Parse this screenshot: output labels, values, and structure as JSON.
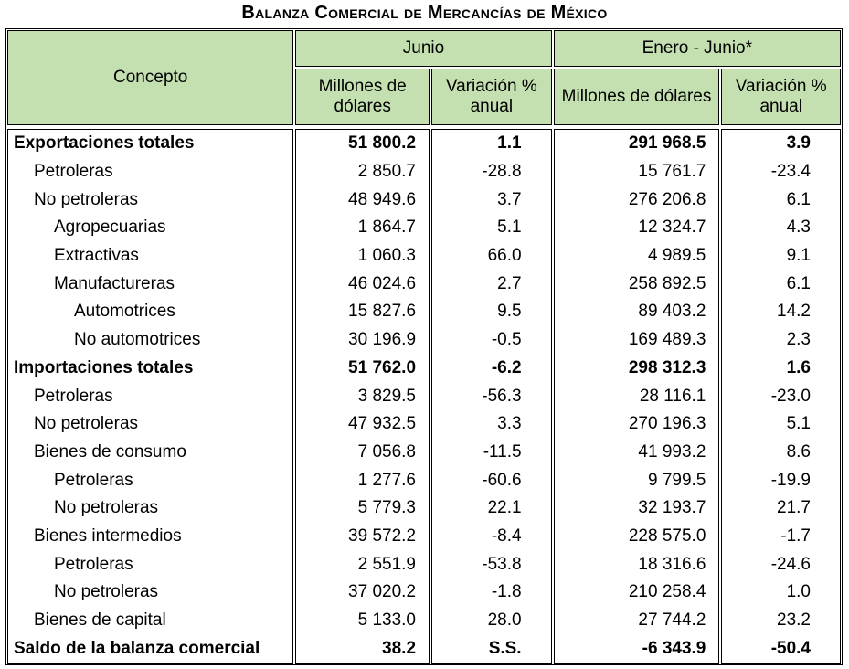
{
  "header": {
    "title": "Balanza Comercial de Mercancías de México"
  },
  "table": {
    "columns": {
      "concepto": "Concepto",
      "junio": "Junio",
      "enero_junio": "Enero - Junio*",
      "sub": [
        "Millones de dólares",
        "Variación % anual",
        "Millones de dólares",
        "Variación % anual"
      ]
    },
    "rows": [
      [
        "Exportaciones totales",
        "51 800.2",
        "1.1",
        "291 968.5",
        "3.9"
      ],
      [
        "Petroleras",
        "2 850.7",
        "-28.8",
        "15 761.7",
        "-23.4"
      ],
      [
        "No petroleras",
        "48 949.6",
        "3.7",
        "276 206.8",
        "6.1"
      ],
      [
        "Agropecuarias",
        "1 864.7",
        "5.1",
        "12 324.7",
        "4.3"
      ],
      [
        "Extractivas",
        "1 060.3",
        "66.0",
        "4 989.5",
        "9.1"
      ],
      [
        "Manufactureras",
        "46 024.6",
        "2.7",
        "258 892.5",
        "6.1"
      ],
      [
        "Automotrices",
        "15 827.6",
        "9.5",
        "89 403.2",
        "14.2"
      ],
      [
        "No automotrices",
        "30 196.9",
        "-0.5",
        "169 489.3",
        "2.3"
      ],
      [
        "Importaciones totales",
        "51 762.0",
        "-6.2",
        "298 312.3",
        "1.6"
      ],
      [
        "Petroleras",
        "3 829.5",
        "-56.3",
        "28 116.1",
        "-23.0"
      ],
      [
        "No petroleras",
        "47 932.5",
        "3.3",
        "270 196.3",
        "5.1"
      ],
      [
        "Bienes de consumo",
        "7 056.8",
        "-11.5",
        "41 993.2",
        "8.6"
      ],
      [
        "Petroleras",
        "1 277.6",
        "-60.6",
        "9 799.5",
        "-19.9"
      ],
      [
        "No petroleras",
        "5 779.3",
        "22.1",
        "32 193.7",
        "21.7"
      ],
      [
        "Bienes intermedios",
        "39 572.2",
        "-8.4",
        "228 575.0",
        "-1.7"
      ],
      [
        "Petroleras",
        "2 551.9",
        "-53.8",
        "18 316.6",
        "-24.6"
      ],
      [
        "No petroleras",
        "37 020.2",
        "-1.8",
        "210 258.4",
        "1.0"
      ],
      [
        "Bienes de capital",
        "5 133.0",
        "28.0",
        "27 744.2",
        "23.2"
      ],
      [
        "Saldo de la balanza comercial",
        "38.2",
        "S.S.",
        "-6 343.9",
        "-50.4"
      ]
    ]
  }
}
